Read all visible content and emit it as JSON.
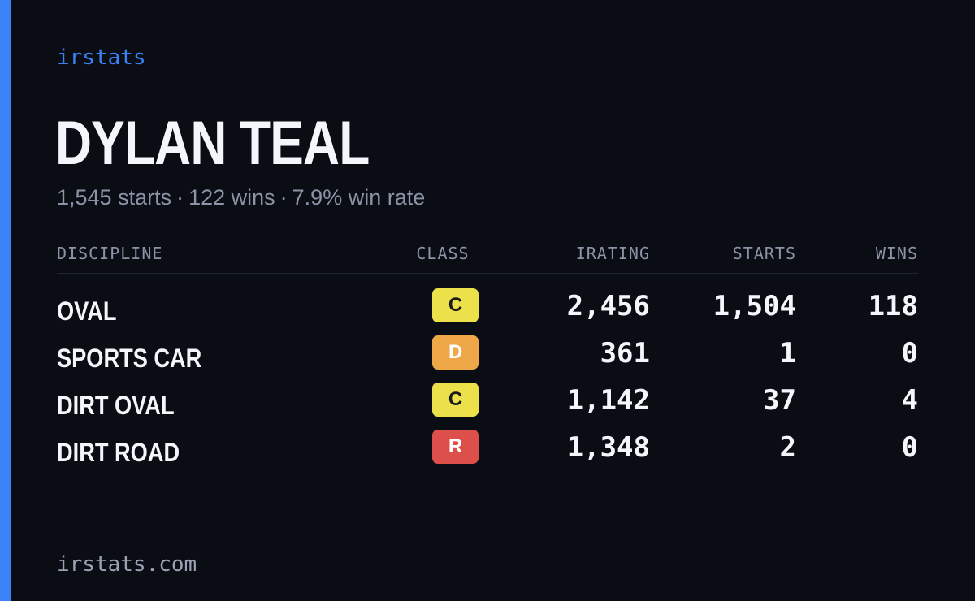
{
  "brand": "irstats",
  "driver": {
    "name": "DYLAN TEAL"
  },
  "summary": {
    "starts": "1,545 starts",
    "wins": "122 wins",
    "win_rate": "7.9% win rate",
    "separator": "·"
  },
  "table": {
    "headers": {
      "discipline": "DISCIPLINE",
      "class": "CLASS",
      "irating": "IRATING",
      "starts": "STARTS",
      "wins": "WINS"
    },
    "rows": [
      {
        "discipline": "OVAL",
        "class": "C",
        "class_color": "#ece14a",
        "class_text_color": "#1a1a1a",
        "irating": "2,456",
        "starts": "1,504",
        "wins": "118"
      },
      {
        "discipline": "SPORTS CAR",
        "class": "D",
        "class_color": "#eea747",
        "class_text_color": "#ffffff",
        "irating": "361",
        "starts": "1",
        "wins": "0"
      },
      {
        "discipline": "DIRT OVAL",
        "class": "C",
        "class_color": "#ece14a",
        "class_text_color": "#1a1a1a",
        "irating": "1,142",
        "starts": "37",
        "wins": "4"
      },
      {
        "discipline": "DIRT ROAD",
        "class": "R",
        "class_color": "#dc4f4a",
        "class_text_color": "#ffffff",
        "irating": "1,348",
        "starts": "2",
        "wins": "0"
      }
    ]
  },
  "footer": {
    "site": "irstats.com"
  },
  "colors": {
    "accent": "#3b82f6",
    "background": "#0a0d14"
  }
}
